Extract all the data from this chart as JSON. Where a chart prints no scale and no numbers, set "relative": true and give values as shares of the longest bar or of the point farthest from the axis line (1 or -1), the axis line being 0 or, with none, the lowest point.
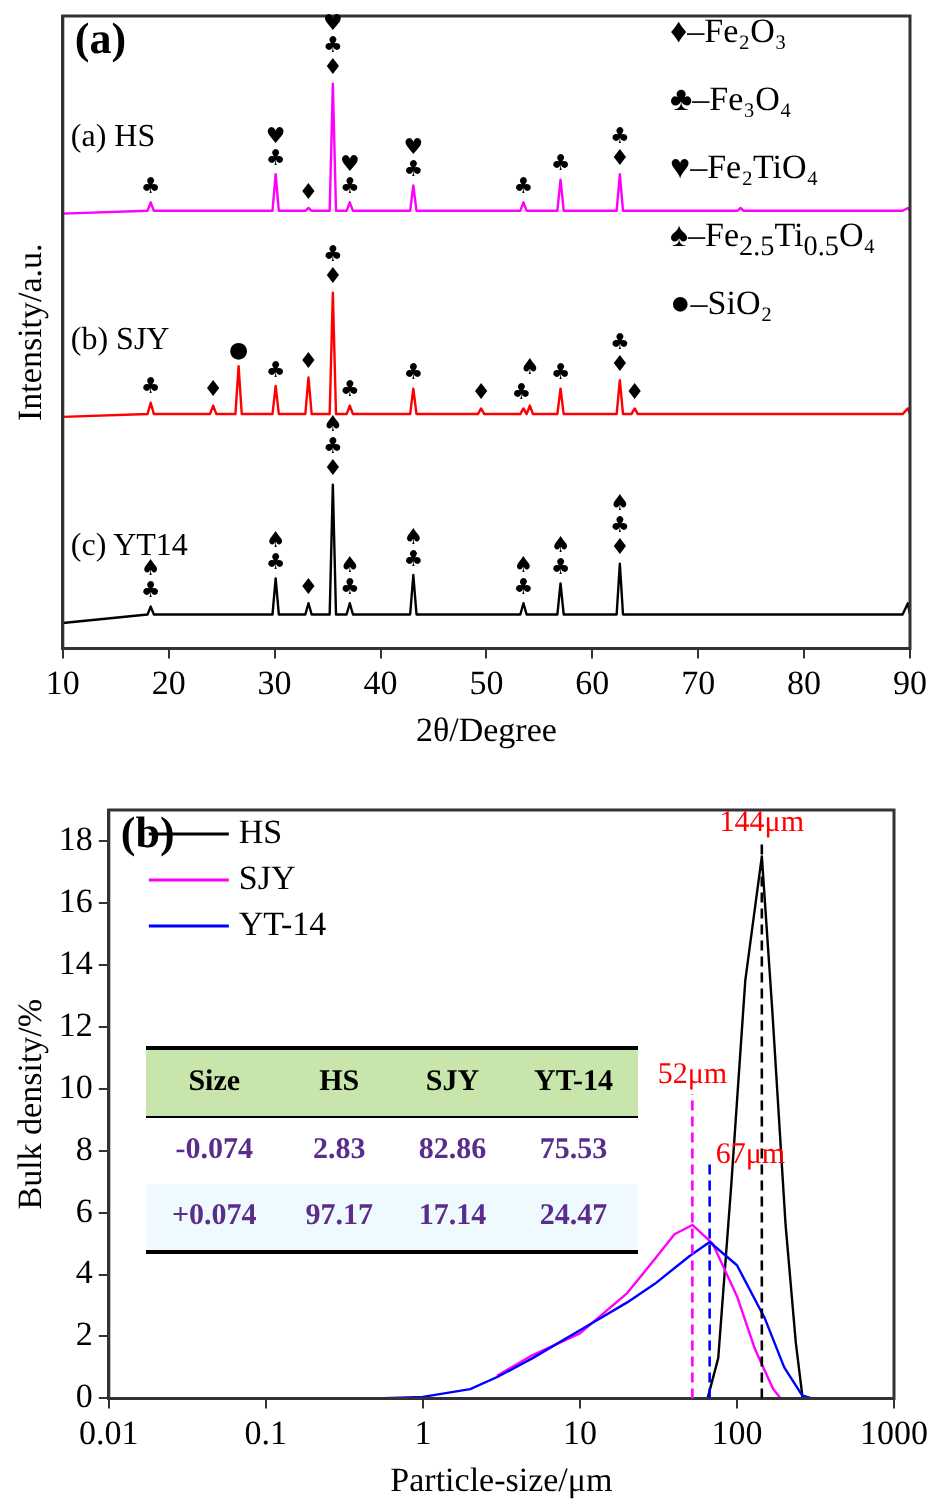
{
  "chart_data": [
    {
      "type": "line",
      "title": "(a)",
      "xlabel": "2θ/Degree",
      "ylabel": "Intensity/a.u.",
      "relative": true,
      "xlim": [
        10,
        90
      ],
      "xticks": [
        10,
        20,
        30,
        40,
        50,
        60,
        70,
        80,
        90
      ],
      "tick_labels": "x",
      "series": [
        {
          "name": "(a) HS",
          "color": "#ff00ff",
          "x": [
            10,
            18.0,
            18.3,
            18.6,
            29.8,
            30.1,
            30.4,
            32.9,
            33.2,
            33.5,
            35.2,
            35.5,
            35.8,
            36.8,
            37.1,
            37.4,
            42.8,
            43.1,
            43.4,
            53.2,
            53.5,
            53.8,
            56.7,
            57.0,
            57.3,
            62.3,
            62.6,
            62.9,
            73.7,
            74.0,
            74.3,
            89.3,
            89.8,
            90
          ],
          "values": [
            0.77,
            0.775,
            0.79,
            0.775,
            0.775,
            0.84,
            0.775,
            0.775,
            0.78,
            0.775,
            0.775,
            1,
            0.775,
            0.775,
            0.79,
            0.775,
            0.775,
            0.82,
            0.775,
            0.775,
            0.79,
            0.775,
            0.775,
            0.83,
            0.775,
            0.775,
            0.84,
            0.775,
            0.775,
            0.78,
            0.775,
            0.775,
            0.78,
            0.775
          ]
        },
        {
          "name": "(b) SJY",
          "color": "#ff0000",
          "x": [
            10,
            18.0,
            18.3,
            18.6,
            23.9,
            24.2,
            24.5,
            26.3,
            26.6,
            26.9,
            29.8,
            30.1,
            30.4,
            32.9,
            33.2,
            33.5,
            35.2,
            35.5,
            35.8,
            36.8,
            37.1,
            37.4,
            42.8,
            43.1,
            43.4,
            49.2,
            49.5,
            49.8,
            53.2,
            53.5,
            53.8,
            54.1,
            54.4,
            56.7,
            57.0,
            57.3,
            62.3,
            62.6,
            62.9,
            63.7,
            64.0,
            64.3,
            89.3,
            89.8,
            90
          ],
          "values": [
            0.41,
            0.415,
            0.435,
            0.415,
            0.415,
            0.43,
            0.415,
            0.415,
            0.5,
            0.415,
            0.415,
            0.465,
            0.415,
            0.415,
            0.48,
            0.415,
            0.415,
            0.63,
            0.415,
            0.415,
            0.43,
            0.415,
            0.415,
            0.46,
            0.415,
            0.415,
            0.425,
            0.415,
            0.415,
            0.425,
            0.415,
            0.43,
            0.415,
            0.415,
            0.46,
            0.415,
            0.415,
            0.475,
            0.415,
            0.415,
            0.425,
            0.415,
            0.415,
            0.425,
            0.415
          ]
        },
        {
          "name": "(c) YT14",
          "color": "#000000",
          "x": [
            10,
            18.0,
            18.3,
            18.6,
            29.8,
            30.1,
            30.4,
            32.9,
            33.2,
            33.5,
            35.2,
            35.5,
            35.8,
            36.8,
            37.1,
            37.4,
            42.8,
            43.1,
            43.4,
            53.2,
            53.5,
            53.8,
            56.7,
            57.0,
            57.3,
            62.3,
            62.6,
            62.9,
            89.3,
            89.8,
            90
          ],
          "values": [
            0.045,
            0.06,
            0.074,
            0.06,
            0.06,
            0.124,
            0.06,
            0.06,
            0.08,
            0.06,
            0.06,
            0.29,
            0.06,
            0.06,
            0.08,
            0.06,
            0.06,
            0.13,
            0.06,
            0.06,
            0.08,
            0.06,
            0.06,
            0.115,
            0.06,
            0.06,
            0.15,
            0.06,
            0.06,
            0.08,
            0.06
          ]
        }
      ],
      "annotations": [
        "♦–Fe₂O₃",
        "♣–Fe₃O₄",
        "♥–Fe₂TiO₄",
        "♠–Fe$_{2.5}$Ti$_{0.5}$O₄",
        "●–SiO₂",
        {
          "text": "♣",
          "x": 18.3,
          "y": 0.79
        },
        {
          "text": "♥",
          "x": 30.1,
          "y": 0.84
        },
        {
          "text": "♣",
          "x": 30.1,
          "y": 0.84
        },
        {
          "text": "♦",
          "x": 33.2,
          "y": 0.78
        },
        {
          "text": "♥",
          "x": 35.5,
          "y": 1
        },
        {
          "text": "♣",
          "x": 35.5,
          "y": 1
        },
        {
          "text": "♦",
          "x": 35.5,
          "y": 1
        },
        {
          "text": "♥",
          "x": 37.1,
          "y": 0.79
        },
        {
          "text": "♣",
          "x": 37.1,
          "y": 0.79
        },
        {
          "text": "♥",
          "x": 43.1,
          "y": 0.82
        },
        {
          "text": "♣",
          "x": 43.1,
          "y": 0.82
        },
        {
          "text": "♣",
          "x": 53.5,
          "y": 0.79
        },
        {
          "text": "♣",
          "x": 57.0,
          "y": 0.83
        },
        {
          "text": "♣",
          "x": 62.6,
          "y": 0.84
        },
        {
          "text": "♦",
          "x": 62.6,
          "y": 0.84
        },
        {
          "text": "♣",
          "x": 18.3,
          "y": 0.435
        },
        {
          "text": "♦",
          "x": 24.2,
          "y": 0.43
        },
        {
          "text": "●",
          "x": 26.6,
          "y": 0.5
        },
        {
          "text": "♣",
          "x": 30.1,
          "y": 0.465
        },
        {
          "text": "♦",
          "x": 33.2,
          "y": 0.48
        },
        {
          "text": "♣",
          "x": 35.5,
          "y": 0.63
        },
        {
          "text": "♦",
          "x": 35.5,
          "y": 0.63
        },
        {
          "text": "♣",
          "x": 37.1,
          "y": 0.43
        },
        {
          "text": "♣",
          "x": 43.1,
          "y": 0.46
        },
        {
          "text": "♦",
          "x": 49.5,
          "y": 0.425
        },
        {
          "text": "♣",
          "x": 53.3,
          "y": 0.425
        },
        {
          "text": "♠",
          "x": 54.1,
          "y": 0.43
        },
        {
          "text": "♣",
          "x": 57.0,
          "y": 0.46
        },
        {
          "text": "♣",
          "x": 62.6,
          "y": 0.475
        },
        {
          "text": "♦",
          "x": 62.6,
          "y": 0.475
        },
        {
          "text": "♦",
          "x": 64.0,
          "y": 0.425
        },
        {
          "text": "♠",
          "x": 18.3,
          "y": 0.074
        },
        {
          "text": "♣",
          "x": 18.3,
          "y": 0.074
        },
        {
          "text": "♠",
          "x": 30.1,
          "y": 0.124
        },
        {
          "text": "♣",
          "x": 30.1,
          "y": 0.124
        },
        {
          "text": "♦",
          "x": 33.2,
          "y": 0.08
        },
        {
          "text": "♠",
          "x": 35.5,
          "y": 0.29
        },
        {
          "text": "♣",
          "x": 35.5,
          "y": 0.29
        },
        {
          "text": "♦",
          "x": 35.5,
          "y": 0.29
        },
        {
          "text": "♠",
          "x": 37.1,
          "y": 0.08
        },
        {
          "text": "♣",
          "x": 37.1,
          "y": 0.08
        },
        {
          "text": "♠",
          "x": 43.1,
          "y": 0.13
        },
        {
          "text": "♣",
          "x": 43.1,
          "y": 0.13
        },
        {
          "text": "♠",
          "x": 53.5,
          "y": 0.08
        },
        {
          "text": "♣",
          "x": 53.5,
          "y": 0.08
        },
        {
          "text": "♠",
          "x": 57.0,
          "y": 0.115
        },
        {
          "text": "♣",
          "x": 57.0,
          "y": 0.115
        },
        {
          "text": "♠",
          "x": 62.6,
          "y": 0.15
        },
        {
          "text": "♣",
          "x": 62.6,
          "y": 0.15
        },
        {
          "text": "♦",
          "x": 62.6,
          "y": 0.15
        }
      ]
    },
    {
      "type": "line",
      "title": "(b)",
      "xlabel": "Particle-size/μm",
      "ylabel": "Bulk density/%",
      "log": "x",
      "xlim": [
        0.01,
        1000
      ],
      "xticks": [
        0.01,
        0.1,
        1,
        10,
        100,
        1000
      ],
      "ylim": [
        0,
        19
      ],
      "yticks": [
        0,
        2,
        4,
        6,
        8,
        10,
        12,
        14,
        16,
        18
      ],
      "legend": "top left",
      "series": [
        {
          "name": "HS",
          "color": "#000000",
          "x": [
            65,
            76,
            92,
            113,
            144,
            168,
            204,
            237,
            262
          ],
          "values": [
            0,
            1.3,
            6.9,
            13.5,
            17.5,
            12.5,
            5.6,
            1.8,
            0
          ]
        },
        {
          "name": "SJY",
          "color": "#ff00ff",
          "x": [
            3,
            5,
            10,
            20,
            30,
            40,
            52,
            70,
            100,
            130,
            170,
            190
          ],
          "values": [
            0.75,
            1.4,
            2.1,
            3.4,
            4.5,
            5.3,
            5.6,
            5.0,
            3.3,
            1.6,
            0.3,
            0
          ]
        },
        {
          "name": "YT-14",
          "color": "#0000ff",
          "x": [
            0.5,
            1,
            2,
            3,
            5,
            10,
            20,
            30,
            50,
            67,
            100,
            150,
            200,
            260,
            300
          ],
          "values": [
            0,
            0.05,
            0.3,
            0.7,
            1.3,
            2.2,
            3.1,
            3.7,
            4.6,
            5.05,
            4.3,
            2.6,
            1.0,
            0.1,
            0
          ]
        }
      ],
      "ref_lines": [
        {
          "axis": "x",
          "value": 144,
          "label": "144μm",
          "color": "#000000",
          "line_style": "dashed"
        },
        {
          "axis": "x",
          "value": 52,
          "label": "52μm",
          "color": "#ff00ff",
          "line_style": "dashed"
        },
        {
          "axis": "x",
          "value": 67,
          "label": "67μm",
          "color": "#0000ff",
          "line_style": "dashed"
        }
      ],
      "annotations": [
        "Size",
        "HS",
        "SJY",
        "YT-14",
        "-0.074",
        "2.83",
        "82.86",
        "75.53",
        "+0.074",
        "97.17",
        "17.14",
        "24.47"
      ]
    }
  ]
}
